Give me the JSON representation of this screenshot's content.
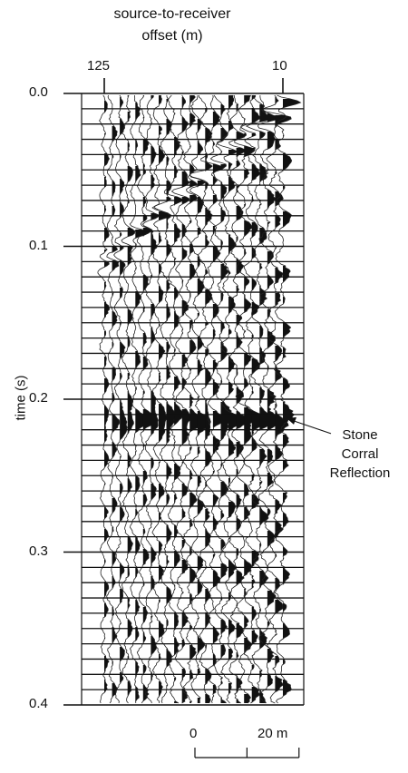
{
  "chart_data": {
    "type": "seismic-record",
    "title_line1": "source-to-receiver",
    "title_line2": "offset (m)",
    "x_ticks": [
      "125",
      "10"
    ],
    "ylabel": "time (s)",
    "y_ticks": [
      "0.0",
      "0.1",
      "0.2",
      "0.3",
      "0.4"
    ],
    "ylim": [
      0.0,
      0.4
    ],
    "xlim_offset_m": [
      125,
      10
    ],
    "annotation": {
      "lines": [
        "Stone",
        "Corral",
        "Reflection"
      ],
      "time_s": 0.213
    },
    "scale_bar": {
      "label_start": "0",
      "label_end": "20 m",
      "length_m": 20
    }
  }
}
